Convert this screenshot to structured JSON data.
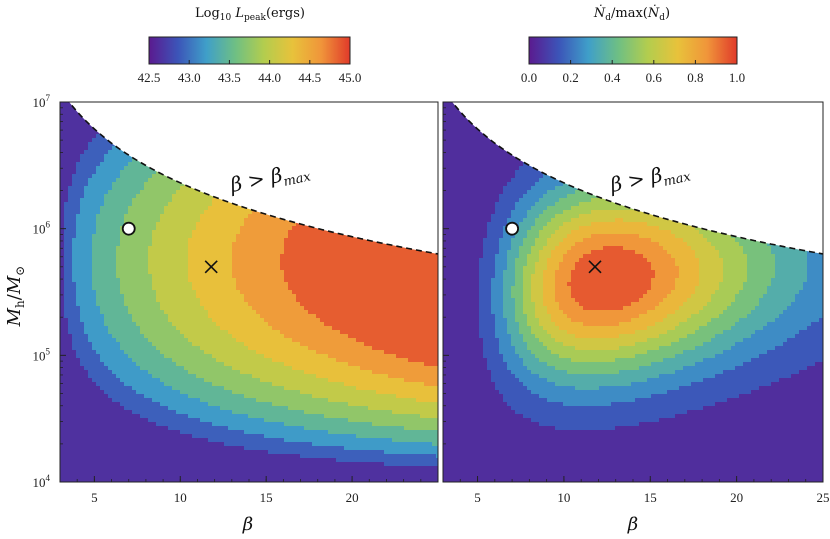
{
  "chart_data": [
    {
      "type": "heatmap",
      "colorbar": {
        "label_prefix": "Log",
        "label_sub": "10",
        "label_var": "L",
        "label_var_sub": "peak",
        "label_unit": "(ergs)",
        "range": [
          42.5,
          45.0
        ],
        "ticks": [
          "42.5",
          "43.0",
          "43.5",
          "44.0",
          "44.5",
          "45.0"
        ]
      },
      "x_label": "β",
      "x_range": [
        3,
        25
      ],
      "x_ticks": [
        "5",
        "10",
        "15",
        "20"
      ],
      "y_label": "M_h/M_⊙",
      "y_label_num": "M",
      "y_label_num_sub": "h",
      "y_label_den": "M",
      "y_label_den_sub": "⊙",
      "y_scale": "log",
      "y_range": [
        10000,
        10000000
      ],
      "y_ticks": [
        "10",
        "10",
        "10",
        "10"
      ],
      "y_tick_exponents": [
        "4",
        "5",
        "6",
        "7"
      ],
      "annotation": "β > β",
      "annotation_sub": "max",
      "markers": [
        {
          "type": "circle",
          "beta": 7.0,
          "mass": 1000000
        },
        {
          "type": "cross",
          "beta": 11.8,
          "mass": 500000
        }
      ],
      "contour_levels": [
        43.0,
        43.25,
        43.5,
        43.75,
        44.0,
        44.25,
        44.5,
        44.75
      ]
    },
    {
      "type": "heatmap",
      "colorbar": {
        "label_prefix": "Ṅ",
        "label_sub": "d",
        "label_mid": "/max(",
        "label_var": "Ṅ",
        "label_var_sub": "d",
        "label_unit": ")",
        "range": [
          0.0,
          1.0
        ],
        "ticks": [
          "0.0",
          "0.2",
          "0.4",
          "0.6",
          "0.8",
          "1.0"
        ]
      },
      "x_label": "β",
      "x_range": [
        3,
        25
      ],
      "x_ticks": [
        "5",
        "10",
        "15",
        "20",
        "25"
      ],
      "y_scale": "log",
      "y_range": [
        10000,
        10000000
      ],
      "annotation": "β > β",
      "annotation_sub": "max",
      "markers": [
        {
          "type": "circle",
          "beta": 7.0,
          "mass": 1000000
        },
        {
          "type": "cross",
          "beta": 11.8,
          "mass": 500000
        }
      ],
      "contour_levels": [
        0.1,
        0.2,
        0.3,
        0.4,
        0.5,
        0.6,
        0.7,
        0.8,
        0.9
      ]
    }
  ],
  "colors": {
    "colormap": [
      "#5b1a8f",
      "#3c54b8",
      "#3f9fc9",
      "#6ebf84",
      "#b3cd4e",
      "#e8c23b",
      "#f0953a",
      "#e03a2a"
    ],
    "forbidden_region": "#ffffff",
    "contour_line": "#1a1a1a"
  }
}
